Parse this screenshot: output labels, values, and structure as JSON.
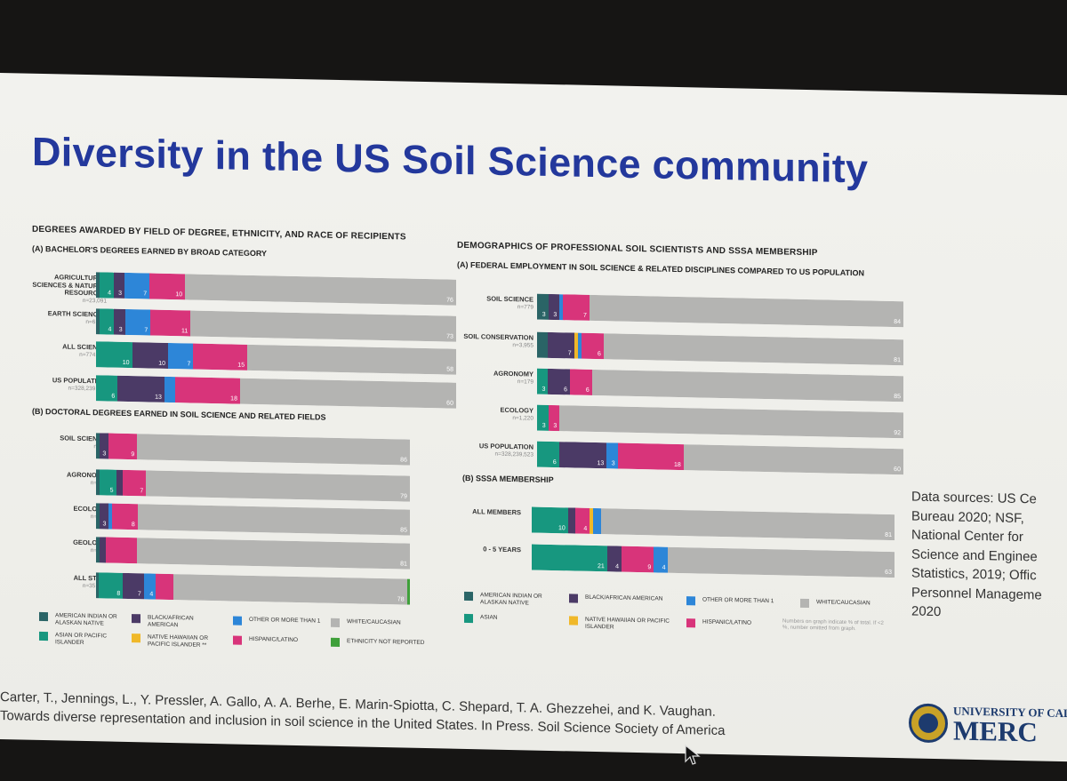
{
  "slide_title": "Diversity in the US Soil Science community",
  "colors": {
    "american_indian": "#2a6466",
    "asian": "#17977f",
    "black": "#4b3a66",
    "hawaiian": "#f0b829",
    "other": "#2d86d8",
    "hispanic": "#d8347a",
    "white": "#b4b4b2",
    "not_reported": "#3fa03a"
  },
  "left_panel": {
    "title": "Degrees awarded by field of degree, ethnicity, and race of recipients",
    "section_a": "(A) Bachelor's degrees earned by broad category",
    "section_b": "(B) Doctoral degrees earned in soil science and related fields"
  },
  "right_panel": {
    "title": "Demographics of professional soil scientists and SSSA membership",
    "section_a": "(A) Federal employment in soil science & related disciplines compared to US population",
    "section_b": "(B) SSSA membership"
  },
  "chart_data": [
    {
      "type": "bar",
      "title": "(A) Bachelor's degrees earned by broad category",
      "categories": [
        "Agricultural Sciences & Natural Resources",
        "Earth Sciences",
        "All Science",
        "US Population"
      ],
      "n_labels": [
        "n=23,091",
        "n=6,204",
        "n=774,136",
        "n=328,239,523"
      ],
      "series": [
        {
          "name": "American Indian or Alaskan Native",
          "color_key": "american_indian",
          "values": [
            1,
            1,
            0,
            0
          ],
          "labels": [
            "",
            "",
            "",
            ""
          ]
        },
        {
          "name": "Asian or Pacific Islander",
          "color_key": "asian",
          "values": [
            4,
            4,
            10,
            6
          ],
          "labels": [
            "4",
            "4",
            "10",
            "6"
          ]
        },
        {
          "name": "Black/African American",
          "color_key": "black",
          "values": [
            3,
            3,
            10,
            13
          ],
          "labels": [
            "3",
            "3",
            "10",
            "13"
          ]
        },
        {
          "name": "Other or more than 1",
          "color_key": "other",
          "values": [
            7,
            7,
            7,
            3
          ],
          "labels": [
            "7",
            "7",
            "7",
            ""
          ]
        },
        {
          "name": "Native Hawaiian or Pacific Islander",
          "color_key": "hawaiian",
          "values": [
            0,
            0,
            0,
            0
          ],
          "labels": [
            "",
            "",
            "",
            ""
          ]
        },
        {
          "name": "Hispanic/Latino",
          "color_key": "hispanic",
          "values": [
            10,
            11,
            15,
            18
          ],
          "labels": [
            "10",
            "11",
            "15",
            "18"
          ]
        },
        {
          "name": "White/Caucasian",
          "color_key": "white",
          "values": [
            76,
            73,
            58,
            60
          ],
          "labels": [
            "76",
            "73",
            "58",
            "60"
          ]
        }
      ]
    },
    {
      "type": "bar",
      "title": "(B) Doctoral degrees earned in soil science and related fields",
      "categories": [
        "Soil Science",
        "Agronomy",
        "Ecology",
        "Geology",
        "All STEM"
      ],
      "n_labels": [
        "n=66",
        "n=349",
        "n=418",
        "n=131",
        "n=35,404"
      ],
      "series": [
        {
          "name": "American Indian or Alaskan Native",
          "color_key": "american_indian",
          "values": [
            1,
            1,
            1,
            1,
            1
          ],
          "labels": [
            "",
            "",
            "",
            "",
            ""
          ]
        },
        {
          "name": "Asian or Pacific Islander",
          "color_key": "asian",
          "values": [
            0,
            5,
            0,
            0,
            8
          ],
          "labels": [
            "",
            "5",
            "",
            "",
            "8"
          ]
        },
        {
          "name": "Black/African American",
          "color_key": "black",
          "values": [
            3,
            2,
            3,
            2,
            7
          ],
          "labels": [
            "3",
            "",
            "3",
            "",
            "7"
          ]
        },
        {
          "name": "Other or more than 1",
          "color_key": "other",
          "values": [
            0,
            0,
            1,
            0,
            4
          ],
          "labels": [
            "",
            "",
            "",
            "",
            "4"
          ]
        },
        {
          "name": "Native Hawaiian or Pacific Islander",
          "color_key": "hawaiian",
          "values": [
            0,
            0,
            0,
            0,
            0
          ],
          "labels": [
            "",
            "",
            "",
            "",
            ""
          ]
        },
        {
          "name": "Hispanic/Latino",
          "color_key": "hispanic",
          "values": [
            9,
            7,
            8,
            9,
            6
          ],
          "labels": [
            "9",
            "7",
            "8",
            "",
            ""
          ]
        },
        {
          "name": "White/Caucasian",
          "color_key": "white",
          "values": [
            86,
            79,
            85,
            81,
            78
          ],
          "labels": [
            "86",
            "79",
            "85",
            "81",
            "78"
          ]
        },
        {
          "name": "Ethnicity not reported",
          "color_key": "not_reported",
          "values": [
            0,
            0,
            0,
            0,
            1
          ],
          "labels": [
            "",
            "",
            "",
            "",
            ""
          ]
        }
      ]
    },
    {
      "type": "bar",
      "title": "(A) Federal employment in soil science & related disciplines compared to US population",
      "categories": [
        "Soil Science",
        "Soil Conservation",
        "Agronomy",
        "Ecology",
        "US Population"
      ],
      "n_labels": [
        "n=779",
        "n=3,955",
        "n=179",
        "n=1,220",
        "n=328,239,523"
      ],
      "series": [
        {
          "name": "American Indian or Alaskan Native",
          "color_key": "american_indian",
          "values": [
            3,
            3,
            0,
            0,
            0
          ],
          "labels": [
            "3",
            "",
            "",
            "",
            ""
          ]
        },
        {
          "name": "Asian",
          "color_key": "asian",
          "values": [
            0,
            0,
            3,
            3,
            6
          ],
          "labels": [
            "",
            "",
            "3",
            "3",
            "6"
          ]
        },
        {
          "name": "Black/African American",
          "color_key": "black",
          "values": [
            3,
            7,
            6,
            0,
            13
          ],
          "labels": [
            "3",
            "7",
            "6",
            "",
            "13"
          ]
        },
        {
          "name": "Native Hawaiian or Pacific Islander",
          "color_key": "hawaiian",
          "values": [
            0,
            1,
            0,
            0,
            0
          ],
          "labels": [
            "",
            "",
            "",
            "",
            ""
          ]
        },
        {
          "name": "Other or more than 1",
          "color_key": "other",
          "values": [
            1,
            1,
            0,
            0,
            3
          ],
          "labels": [
            "",
            "",
            "",
            "",
            "3"
          ]
        },
        {
          "name": "Hispanic/Latino",
          "color_key": "hispanic",
          "values": [
            7,
            6,
            6,
            3,
            18
          ],
          "labels": [
            "7",
            "6",
            "6",
            "3",
            "18"
          ]
        },
        {
          "name": "White/Caucasian",
          "color_key": "white",
          "values": [
            84,
            81,
            85,
            92,
            60
          ],
          "labels": [
            "84",
            "81",
            "85",
            "92",
            "60"
          ]
        }
      ]
    },
    {
      "type": "bar",
      "title": "(B) SSSA membership",
      "categories": [
        "All Members",
        "0 - 5 Years"
      ],
      "n_labels": [
        "",
        ""
      ],
      "series": [
        {
          "name": "Asian",
          "color_key": "asian",
          "values": [
            10,
            21
          ],
          "labels": [
            "10",
            "21"
          ]
        },
        {
          "name": "Black/African American",
          "color_key": "black",
          "values": [
            2,
            4
          ],
          "labels": [
            "",
            "4"
          ]
        },
        {
          "name": "Hispanic/Latino",
          "color_key": "hispanic",
          "values": [
            4,
            9
          ],
          "labels": [
            "4",
            "9"
          ]
        },
        {
          "name": "Native Hawaiian or Pacific Islander",
          "color_key": "hawaiian",
          "values": [
            1,
            0
          ],
          "labels": [
            "",
            ""
          ]
        },
        {
          "name": "Other or more than 1",
          "color_key": "other",
          "values": [
            2,
            4
          ],
          "labels": [
            "",
            "4"
          ]
        },
        {
          "name": "White/Caucasian",
          "color_key": "white",
          "values": [
            81,
            63
          ],
          "labels": [
            "81",
            "63"
          ]
        }
      ]
    }
  ],
  "legend_left": [
    {
      "label": "American Indian or Alaskan Native",
      "color_key": "american_indian"
    },
    {
      "label": "Black/African American",
      "color_key": "black"
    },
    {
      "label": "Other or more than 1",
      "color_key": "other"
    },
    {
      "label": "White/Caucasian",
      "color_key": "white"
    },
    {
      "label": "Asian or Pacific Islander",
      "color_key": "asian"
    },
    {
      "label": "Native Hawaiian or Pacific Islander **",
      "color_key": "hawaiian"
    },
    {
      "label": "Hispanic/Latino",
      "color_key": "hispanic"
    },
    {
      "label": "Ethnicity not reported",
      "color_key": "not_reported"
    }
  ],
  "legend_right": [
    {
      "label": "American Indian or Alaskan Native",
      "color_key": "american_indian"
    },
    {
      "label": "Black/African American",
      "color_key": "black"
    },
    {
      "label": "Other or more than 1",
      "color_key": "other"
    },
    {
      "label": "White/Caucasian",
      "color_key": "white"
    },
    {
      "label": "Asian",
      "color_key": "asian"
    },
    {
      "label": "Native Hawaiian or Pacific Islander",
      "color_key": "hawaiian"
    },
    {
      "label": "Hispanic/Latino",
      "color_key": "hispanic"
    }
  ],
  "note": "Numbers on graph indicate % of total. If <2 %, number omitted from graph.",
  "data_sources": [
    "Data sources: US Ce",
    "Bureau 2020; NSF,",
    "National Center for",
    "Science and Enginee",
    "Statistics, 2019; Offic",
    "Personnel Manageme",
    "2020"
  ],
  "citation": [
    "Carter, T., Jennings, L., Y. Pressler, A. Gallo, A. A. Berhe, E. Marin-Spiotta, C. Shepard, T. A. Ghezzehei, and K. Vaughan.",
    "Towards diverse representation and inclusion in soil science in the United States. In Press. Soil Science Society of America"
  ],
  "logo": {
    "line1": "UNIVERSITY OF CAL",
    "line2": "MERC"
  }
}
